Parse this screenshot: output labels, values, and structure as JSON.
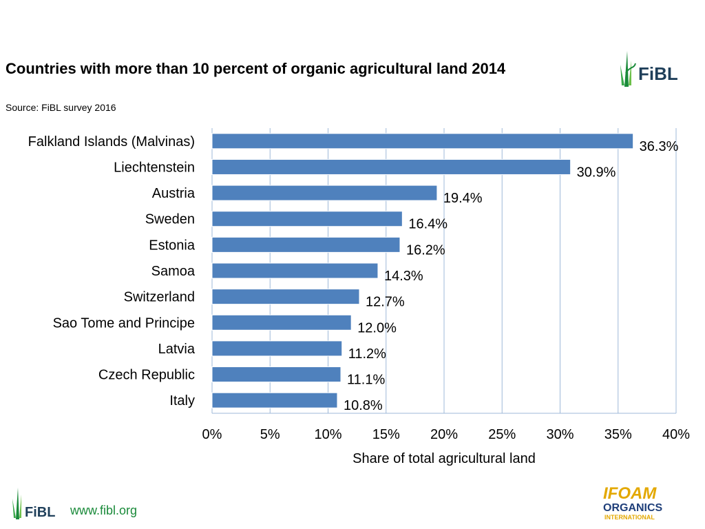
{
  "header": {
    "title": "Countries with more than 10 percent of organic agricultural land 2014",
    "source": "Source: FiBL survey 2016"
  },
  "logos": {
    "fibl_text": "FiBL",
    "ifoam_line1": "IFOAM",
    "ifoam_line2": "ORGANICS",
    "ifoam_line3": "INTERNATIONAL"
  },
  "footer": {
    "url": "www.fibl.org"
  },
  "colors": {
    "bar": "#4f81bd",
    "grid": "#9db8d8",
    "fibl_green": "#1a8a3a",
    "ifoam_yellow": "#e3a800",
    "ifoam_blue": "#1f3f7a"
  },
  "chart_data": {
    "type": "bar",
    "orientation": "horizontal",
    "title": "Countries with more than 10 percent of organic agricultural land 2014",
    "subtitle": "Source: FiBL survey 2016",
    "xlabel": "Share of total agricultural land",
    "ylabel": "",
    "categories": [
      "Falkland Islands (Malvinas)",
      "Liechtenstein",
      "Austria",
      "Sweden",
      "Estonia",
      "Samoa",
      "Switzerland",
      "Sao Tome and Principe",
      "Latvia",
      "Czech Republic",
      "Italy"
    ],
    "values": [
      36.3,
      30.9,
      19.4,
      16.4,
      16.2,
      14.3,
      12.7,
      12.0,
      11.2,
      11.1,
      10.8
    ],
    "data_labels": [
      "36.3%",
      "30.9%",
      "19.4%",
      "16.4%",
      "16.2%",
      "14.3%",
      "12.7%",
      "12.0%",
      "11.2%",
      "11.1%",
      "10.8%"
    ],
    "xlim": [
      0,
      40
    ],
    "xticks": [
      0,
      5,
      10,
      15,
      20,
      25,
      30,
      35,
      40
    ],
    "xtick_labels": [
      "0%",
      "5%",
      "10%",
      "15%",
      "20%",
      "25%",
      "30%",
      "35%",
      "40%"
    ],
    "grid": true,
    "legend": "none"
  }
}
